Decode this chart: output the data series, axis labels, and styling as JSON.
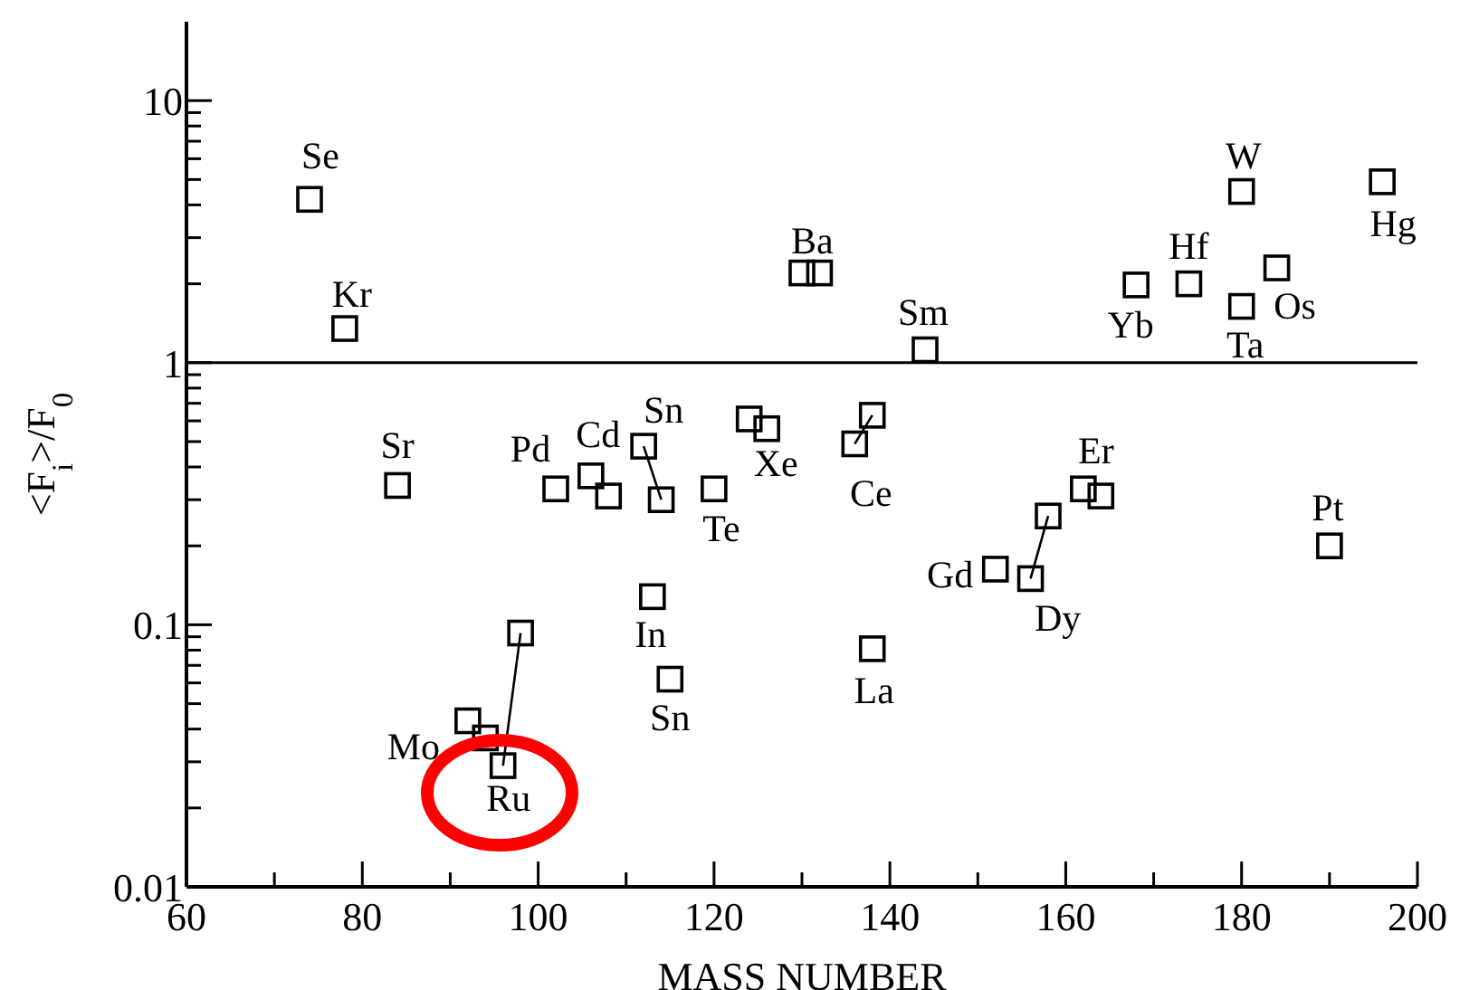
{
  "chart_data": {
    "type": "scatter",
    "xlabel": "MASS NUMBER",
    "ylabel": "<F$_{i}$>/F$_{0}$",
    "xlim": [
      60,
      200
    ],
    "xticks": [
      60,
      {
        "value": 70,
        "label": null
      },
      80,
      {
        "value": 90,
        "label": null
      },
      100,
      {
        "value": 110,
        "label": null
      },
      120,
      {
        "value": 130,
        "label": null
      },
      140,
      {
        "value": 150,
        "label": null
      },
      160,
      {
        "value": 170,
        "label": null
      },
      180,
      {
        "value": 190,
        "label": null
      },
      200
    ],
    "ylim": [
      0.01,
      20
    ],
    "log": "y",
    "yticks": [
      0.01,
      {
        "value": 0.02,
        "label": null
      },
      {
        "value": 0.03,
        "label": null
      },
      {
        "value": 0.04,
        "label": null
      },
      {
        "value": 0.05,
        "label": null
      },
      {
        "value": 0.06,
        "label": null
      },
      {
        "value": 0.07,
        "label": null
      },
      {
        "value": 0.08,
        "label": null
      },
      {
        "value": 0.09,
        "label": null
      },
      0.1,
      {
        "value": 0.2,
        "label": null
      },
      {
        "value": 0.3,
        "label": null
      },
      {
        "value": 0.4,
        "label": null
      },
      {
        "value": 0.5,
        "label": null
      },
      {
        "value": 0.6,
        "label": null
      },
      {
        "value": 0.7,
        "label": null
      },
      {
        "value": 0.8,
        "label": null
      },
      {
        "value": 0.9,
        "label": null
      },
      1,
      {
        "value": 2,
        "label": null
      },
      {
        "value": 3,
        "label": null
      },
      {
        "value": 4,
        "label": null
      },
      {
        "value": 5,
        "label": null
      },
      {
        "value": 6,
        "label": null
      },
      {
        "value": 7,
        "label": null
      },
      {
        "value": 8,
        "label": null
      },
      {
        "value": 9,
        "label": null
      },
      10
    ],
    "grid": false,
    "legend": false,
    "marker": "square",
    "ref_lines": [
      {
        "axis": "y",
        "value": 1,
        "color": "#000000"
      }
    ],
    "series": [
      {
        "type": "line",
        "marker": "none",
        "color": "#000000",
        "x": [
          136,
          138
        ],
        "values": [
          0.49,
          0.63
        ]
      },
      {
        "type": "line",
        "marker": "none",
        "color": "#000000",
        "x": [
          112,
          114
        ],
        "values": [
          0.48,
          0.3
        ]
      },
      {
        "type": "line",
        "marker": "none",
        "color": "#000000",
        "x": [
          96,
          98
        ],
        "values": [
          0.029,
          0.093
        ]
      },
      {
        "type": "line",
        "marker": "none",
        "color": "#000000",
        "x": [
          156,
          158
        ],
        "values": [
          0.15,
          0.26
        ]
      },
      {
        "color": "#000000",
        "value_labels": [
          "Se",
          "Kr",
          "Sr",
          "Mo",
          null,
          "Ru",
          null,
          "Pd",
          "Cd",
          null,
          "Sn",
          "In",
          null,
          "Sn",
          "Te",
          null,
          "Xe",
          null,
          "Ba",
          "Ce",
          null,
          "La",
          "Sm",
          "Gd",
          "Dy",
          null,
          "Er",
          null,
          "Yb",
          "Hf",
          "W",
          "Ta",
          "Os",
          "Pt",
          "Hg"
        ],
        "x": [
          74,
          78,
          84,
          92,
          94,
          96,
          98,
          102,
          106,
          108,
          112,
          113,
          114,
          115,
          120,
          124,
          126,
          130,
          132,
          136,
          138,
          138,
          144,
          152,
          156,
          158,
          162,
          164,
          168,
          174,
          180,
          180,
          184,
          190,
          196
        ],
        "values": [
          4.2,
          1.35,
          0.34,
          0.043,
          0.037,
          0.029,
          0.093,
          0.33,
          0.37,
          0.31,
          0.48,
          0.128,
          0.3,
          0.062,
          0.33,
          0.61,
          0.56,
          2.2,
          2.2,
          0.49,
          0.63,
          0.081,
          1.12,
          0.163,
          0.15,
          0.26,
          0.33,
          0.31,
          1.98,
          2.0,
          4.5,
          1.64,
          2.3,
          0.2,
          4.9
        ]
      }
    ]
  }
}
